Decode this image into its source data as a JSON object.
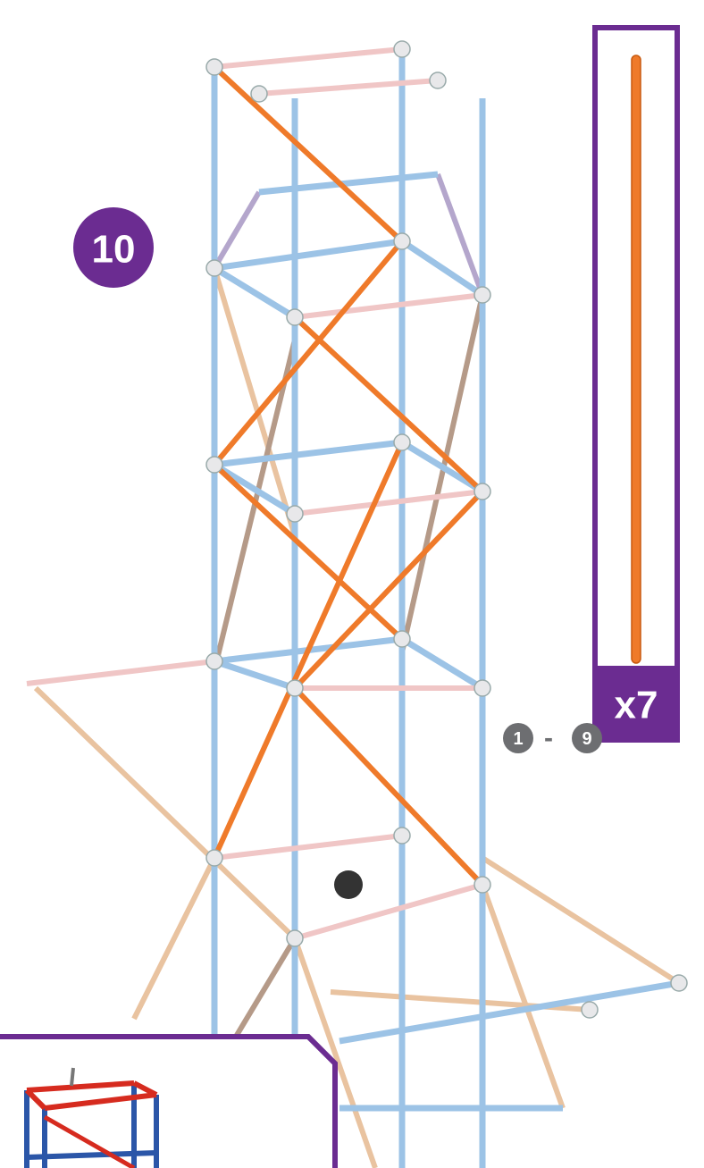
{
  "step": "10",
  "parts": {
    "count": "x7"
  },
  "reference": {
    "from": "1",
    "separator": "-",
    "to": "9"
  }
}
